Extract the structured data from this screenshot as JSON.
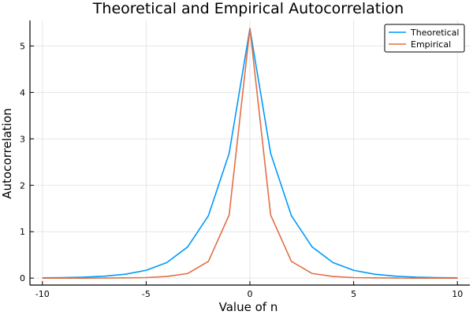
{
  "chart_data": {
    "type": "line",
    "title": "Theoretical and Empirical Autocorrelation",
    "xlabel": "Value of n",
    "ylabel": "Autocorrelation",
    "xlim": [
      -10.6,
      10.6
    ],
    "ylim": [
      -0.15,
      5.55
    ],
    "xticks": [
      -10,
      -5,
      0,
      5,
      10
    ],
    "xtick_labels": [
      "-10",
      "-5",
      "0",
      "5",
      "10"
    ],
    "yticks": [
      0,
      1,
      2,
      3,
      4,
      5
    ],
    "ytick_labels": [
      "0",
      "1",
      "2",
      "3",
      "4",
      "5"
    ],
    "grid": true,
    "legend_position": "top-right",
    "x": [
      -10,
      -9,
      -8,
      -7,
      -6,
      -5,
      -4,
      -3,
      -2,
      -1,
      0,
      1,
      2,
      3,
      4,
      5,
      6,
      7,
      8,
      9,
      10
    ],
    "series": [
      {
        "name": "Theoretical",
        "color": "#009AF9",
        "values": [
          0.005,
          0.011,
          0.021,
          0.042,
          0.084,
          0.168,
          0.336,
          0.672,
          1.344,
          2.688,
          5.376,
          2.688,
          1.344,
          0.672,
          0.336,
          0.168,
          0.084,
          0.042,
          0.021,
          0.011,
          0.005
        ]
      },
      {
        "name": "Empirical",
        "color": "#E26F46",
        "values": [
          0.0,
          0.0,
          0.0,
          0.001,
          0.005,
          0.011,
          0.035,
          0.1,
          0.36,
          1.36,
          5.38,
          1.36,
          0.36,
          0.1,
          0.035,
          0.011,
          0.005,
          0.001,
          0.0,
          0.0,
          0.0
        ]
      }
    ]
  }
}
